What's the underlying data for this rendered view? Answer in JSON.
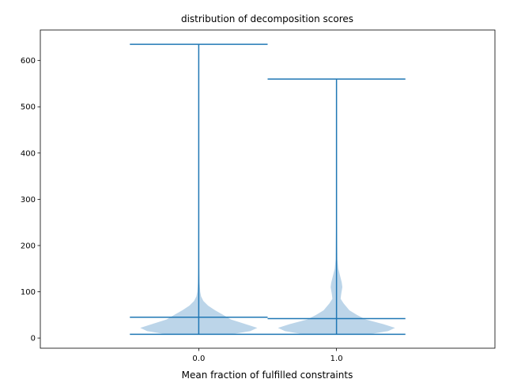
{
  "chart_data": {
    "type": "violin",
    "title": "distribution of decomposition scores",
    "xlabel": "Mean fraction of fulfilled constraints",
    "ylabel": "",
    "xlim": [
      -1.15,
      2.15
    ],
    "ylim": [
      -22,
      666
    ],
    "x_ticks": [
      0.0,
      1.0
    ],
    "x_tick_labels": [
      "0.0",
      "1.0"
    ],
    "y_ticks": [
      0,
      100,
      200,
      300,
      400,
      500,
      600
    ],
    "y_tick_labels": [
      "0",
      "100",
      "200",
      "300",
      "400",
      "500",
      "600"
    ],
    "grid": false,
    "colors": {
      "body": "#9fc3e0",
      "lines": "#1f77b4"
    },
    "violins": [
      {
        "name": "0.0",
        "position": 0.0,
        "min": 8,
        "max": 635,
        "mean": 45,
        "profile": [
          [
            8,
            0.55
          ],
          [
            15,
            0.88
          ],
          [
            22,
            1.0
          ],
          [
            30,
            0.8
          ],
          [
            40,
            0.55
          ],
          [
            50,
            0.42
          ],
          [
            60,
            0.28
          ],
          [
            70,
            0.16
          ],
          [
            80,
            0.08
          ],
          [
            90,
            0.04
          ],
          [
            100,
            0.025
          ],
          [
            120,
            0.015
          ],
          [
            150,
            0.01
          ],
          [
            200,
            0.008
          ],
          [
            250,
            0.005
          ],
          [
            300,
            0.004
          ],
          [
            350,
            0.006
          ],
          [
            370,
            0.005
          ],
          [
            400,
            0.002
          ],
          [
            500,
            0.001
          ],
          [
            635,
            0.0
          ]
        ]
      },
      {
        "name": "1.0",
        "position": 1.0,
        "min": 8,
        "max": 560,
        "mean": 42,
        "profile": [
          [
            8,
            0.55
          ],
          [
            15,
            0.88
          ],
          [
            22,
            1.0
          ],
          [
            30,
            0.8
          ],
          [
            40,
            0.5
          ],
          [
            50,
            0.35
          ],
          [
            60,
            0.22
          ],
          [
            75,
            0.12
          ],
          [
            85,
            0.07
          ],
          [
            95,
            0.08
          ],
          [
            110,
            0.1
          ],
          [
            120,
            0.09
          ],
          [
            135,
            0.06
          ],
          [
            150,
            0.03
          ],
          [
            170,
            0.015
          ],
          [
            200,
            0.012
          ],
          [
            220,
            0.01
          ],
          [
            260,
            0.005
          ],
          [
            300,
            0.002
          ],
          [
            400,
            0.001
          ],
          [
            560,
            0.0
          ]
        ]
      }
    ]
  }
}
